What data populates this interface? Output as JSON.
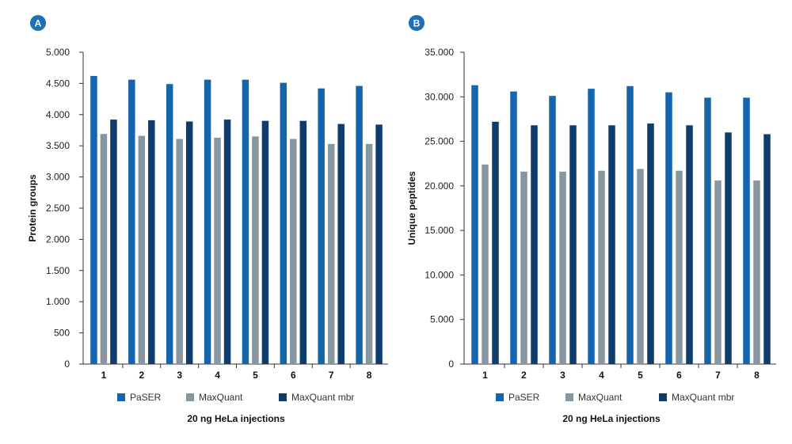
{
  "panels": [
    {
      "badge": "A"
    },
    {
      "badge": "B"
    }
  ],
  "colors": {
    "PaSER": "#1565ad",
    "MaxQuant": "#8896a0",
    "MaxQuant mbr": "#0f3d6b",
    "badge_bg": "#1f6fb6",
    "axis": "#333333"
  },
  "chart_data": [
    {
      "type": "bar",
      "categories": [
        "1",
        "2",
        "3",
        "4",
        "5",
        "6",
        "7",
        "8"
      ],
      "series": [
        {
          "name": "PaSER",
          "values": [
            4620,
            4560,
            4490,
            4560,
            4560,
            4510,
            4420,
            4460
          ]
        },
        {
          "name": "MaxQuant",
          "values": [
            3690,
            3660,
            3610,
            3630,
            3650,
            3610,
            3530,
            3530
          ]
        },
        {
          "name": "MaxQuant mbr",
          "values": [
            3920,
            3910,
            3890,
            3920,
            3900,
            3900,
            3850,
            3840
          ]
        }
      ],
      "title": "",
      "xlabel": "20 ng HeLa injections",
      "ylabel": "Protein groups",
      "ylim": [
        0,
        5000
      ],
      "yticks": [
        0,
        500,
        1000,
        1500,
        2000,
        2500,
        3000,
        3500,
        4000,
        4500,
        5000
      ],
      "ytick_labels": [
        "0",
        "500",
        "1.000",
        "1.500",
        "2.000",
        "2.500",
        "3.000",
        "3.500",
        "4.000",
        "4.500",
        "5.000"
      ],
      "grid": false,
      "legend": "bottom"
    },
    {
      "type": "bar",
      "categories": [
        "1",
        "2",
        "3",
        "4",
        "5",
        "6",
        "7",
        "8"
      ],
      "series": [
        {
          "name": "PaSER",
          "values": [
            31300,
            30600,
            30100,
            30900,
            31200,
            30500,
            29900,
            29900
          ]
        },
        {
          "name": "MaxQuant",
          "values": [
            22400,
            21600,
            21600,
            21700,
            21900,
            21700,
            20600,
            20600
          ]
        },
        {
          "name": "MaxQuant mbr",
          "values": [
            27200,
            26800,
            26800,
            26800,
            27000,
            26800,
            26000,
            25800
          ]
        }
      ],
      "title": "",
      "xlabel": "20 ng HeLa injections",
      "ylabel": "Unique peptides",
      "ylim": [
        0,
        35000
      ],
      "yticks": [
        0,
        5000,
        10000,
        15000,
        20000,
        25000,
        30000,
        35000
      ],
      "ytick_labels": [
        "0",
        "5.000",
        "10.000",
        "15.000",
        "20.000",
        "25.000",
        "30.000",
        "35.000"
      ],
      "grid": false,
      "legend": "bottom"
    }
  ]
}
